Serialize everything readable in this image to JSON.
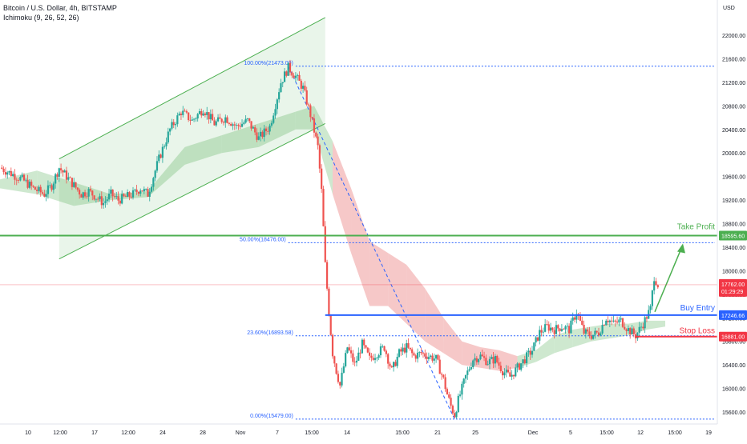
{
  "header": {
    "symbol_line": "Bitcoin / U.S. Dollar, 4h, BITSTAMP",
    "indicator_line": "Ichimoku (9, 26, 52, 26)"
  },
  "colors": {
    "up": "#26a69a",
    "down": "#ef5350",
    "channel": "#4caf50",
    "cloud_bull": "#a5d6a7",
    "cloud_bear": "#ef9a9a",
    "fib": "#2962ff",
    "take_profit": "#4caf50",
    "buy_entry": "#2962ff",
    "stop_loss": "#f23645"
  },
  "chart_data": {
    "type": "candlestick",
    "price_axis_label": "USD",
    "y_ticks": [
      "22000.00",
      "21600.00",
      "21200.00",
      "20800.00",
      "20400.00",
      "20000.00",
      "19600.00",
      "19200.00",
      "18800.00",
      "18400.00",
      "18000.00",
      "17600.00",
      "17200.00",
      "16800.00",
      "16400.00",
      "16000.00",
      "15600.00"
    ],
    "x_ticks": [
      "10",
      "12:00",
      "17",
      "12:00",
      "24",
      "28",
      "Nov",
      "7",
      "15:00",
      "14",
      "15:00",
      "21",
      "25",
      "Dec",
      "5",
      "15:00",
      "12",
      "15:00",
      "19"
    ],
    "fib_levels": [
      {
        "label": "100.00%(21473.00)",
        "price": 21473
      },
      {
        "label": "50.00%(18476.00)",
        "price": 18476
      },
      {
        "label": "23.60%(16893.58)",
        "price": 16893.58
      },
      {
        "label": "0.00%(15479.00)",
        "price": 15479
      }
    ],
    "levels": [
      {
        "name": "Take Profit",
        "price": 18595.6,
        "badge": "18595.60"
      },
      {
        "name": "Buy Entry",
        "price": 17246.66,
        "badge": "17246.66"
      },
      {
        "name": "Stop Loss",
        "price": 16881.0,
        "badge": "16881.00"
      }
    ],
    "current_price": {
      "price": 17762.0,
      "badge": "17762.00",
      "countdown": "01:29:29"
    },
    "path_points": [
      [
        0,
        19750
      ],
      [
        3,
        19650
      ],
      [
        6,
        19550
      ],
      [
        9,
        19400
      ],
      [
        12,
        19300
      ],
      [
        14,
        19450
      ],
      [
        16,
        19750
      ],
      [
        18,
        19600
      ],
      [
        20,
        19450
      ],
      [
        22,
        19300
      ],
      [
        24,
        19350
      ],
      [
        26,
        19250
      ],
      [
        28,
        19150
      ],
      [
        30,
        19300
      ],
      [
        32,
        19200
      ],
      [
        34,
        19250
      ],
      [
        36,
        19300
      ],
      [
        38,
        19400
      ],
      [
        40,
        19300
      ],
      [
        43,
        19900
      ],
      [
        46,
        20400
      ],
      [
        49,
        20700
      ],
      [
        52,
        20550
      ],
      [
        55,
        20750
      ],
      [
        58,
        20500
      ],
      [
        61,
        20600
      ],
      [
        64,
        20450
      ],
      [
        67,
        20550
      ],
      [
        70,
        20250
      ],
      [
        73,
        20450
      ],
      [
        76,
        21200
      ],
      [
        78,
        21450
      ],
      [
        80,
        21300
      ],
      [
        82,
        21100
      ],
      [
        84,
        20650
      ],
      [
        86,
        20100
      ],
      [
        87,
        19350
      ],
      [
        88,
        18100
      ],
      [
        89,
        17300
      ],
      [
        90,
        16600
      ],
      [
        91,
        16300
      ],
      [
        92,
        16050
      ],
      [
        94,
        16700
      ],
      [
        96,
        16400
      ],
      [
        98,
        16750
      ],
      [
        100,
        16500
      ],
      [
        102,
        16600
      ],
      [
        104,
        16700
      ],
      [
        106,
        16300
      ],
      [
        108,
        16600
      ],
      [
        110,
        16700
      ],
      [
        112,
        16550
      ],
      [
        114,
        16600
      ],
      [
        116,
        16550
      ],
      [
        118,
        16500
      ],
      [
        120,
        16150
      ],
      [
        121,
        15900
      ],
      [
        122,
        15700
      ],
      [
        123,
        15550
      ],
      [
        124,
        15800
      ],
      [
        126,
        16200
      ],
      [
        128,
        16500
      ],
      [
        130,
        16550
      ],
      [
        132,
        16450
      ],
      [
        134,
        16500
      ],
      [
        136,
        16300
      ],
      [
        138,
        16200
      ],
      [
        140,
        16350
      ],
      [
        142,
        16500
      ],
      [
        144,
        16650
      ],
      [
        146,
        16950
      ],
      [
        148,
        17050
      ],
      [
        150,
        17000
      ],
      [
        152,
        17050
      ],
      [
        154,
        17000
      ],
      [
        156,
        17300
      ],
      [
        158,
        16950
      ],
      [
        160,
        16900
      ],
      [
        162,
        16950
      ],
      [
        164,
        17200
      ],
      [
        166,
        17100
      ],
      [
        168,
        17150
      ],
      [
        170,
        17000
      ],
      [
        172,
        16900
      ],
      [
        174,
        17100
      ],
      [
        176,
        17350
      ],
      [
        177,
        17900
      ],
      [
        178,
        17762
      ]
    ],
    "cloud_points": [
      [
        0,
        19550,
        19400
      ],
      [
        10,
        19700,
        19300
      ],
      [
        20,
        19500,
        19100
      ],
      [
        30,
        19300,
        19200
      ],
      [
        40,
        19350,
        19250
      ],
      [
        50,
        20100,
        19800
      ],
      [
        60,
        20300,
        20000
      ],
      [
        70,
        20500,
        20100
      ],
      [
        80,
        20700,
        20400
      ],
      [
        85,
        20800,
        20400
      ],
      [
        90,
        20200,
        19300
      ],
      [
        95,
        19400,
        18300
      ],
      [
        100,
        18500,
        17400
      ],
      [
        105,
        18300,
        17400
      ],
      [
        110,
        18100,
        17100
      ],
      [
        115,
        17700,
        16800
      ],
      [
        120,
        17200,
        16600
      ],
      [
        125,
        16800,
        16400
      ],
      [
        130,
        16700,
        16350
      ],
      [
        135,
        16650,
        16300
      ],
      [
        140,
        16550,
        16350
      ],
      [
        145,
        16650,
        16450
      ],
      [
        150,
        16900,
        16600
      ],
      [
        155,
        17000,
        16700
      ],
      [
        160,
        17050,
        16800
      ],
      [
        165,
        17100,
        16850
      ],
      [
        170,
        17100,
        16900
      ],
      [
        175,
        17150,
        17000
      ],
      [
        180,
        17150,
        17050
      ]
    ],
    "channel_upper": [
      [
        16,
        19900
      ],
      [
        88,
        22300
      ]
    ],
    "channel_lower": [
      [
        16,
        18200
      ],
      [
        88,
        20500
      ]
    ]
  }
}
